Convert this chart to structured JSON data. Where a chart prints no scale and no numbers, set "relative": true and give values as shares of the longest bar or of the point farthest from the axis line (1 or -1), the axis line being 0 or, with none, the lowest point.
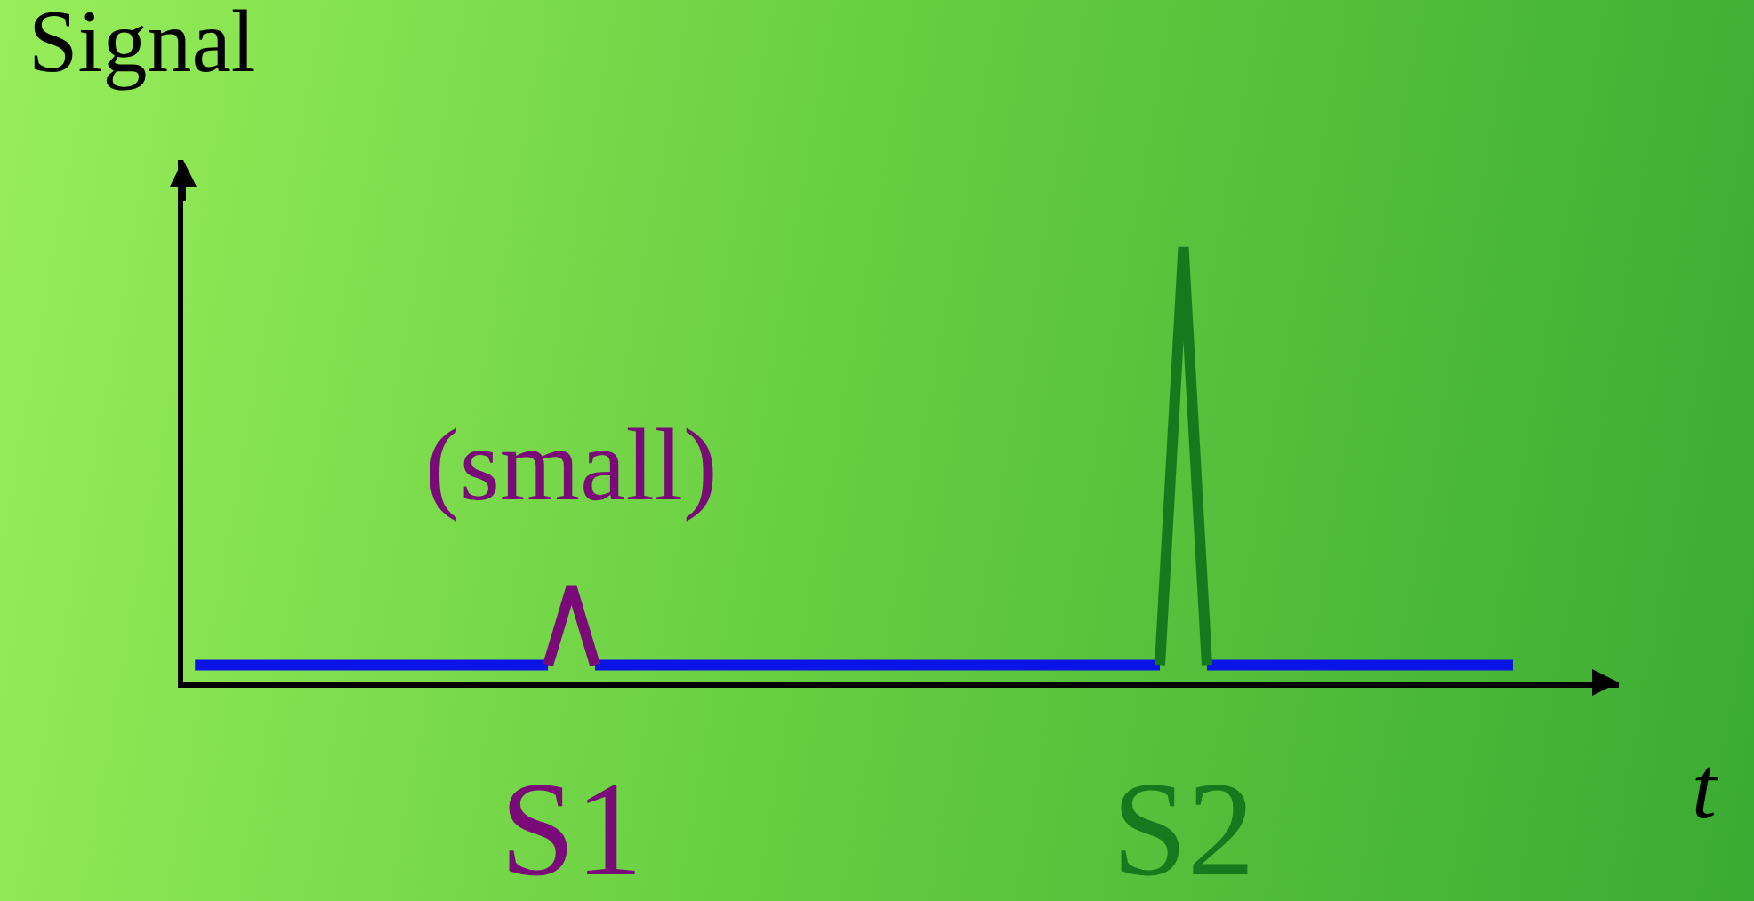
{
  "chart_data": {
    "type": "line",
    "relative": true,
    "ylabel": "Signal",
    "xlabel": "t",
    "categories": [
      null,
      null,
      null,
      null,
      null,
      null,
      null,
      null,
      null,
      null,
      null,
      null,
      null,
      null,
      null,
      null,
      "S1",
      null,
      null,
      null,
      null,
      null,
      null,
      null,
      null,
      null,
      null,
      null,
      null,
      null,
      null,
      null,
      null,
      null,
      null,
      null,
      null,
      null,
      null,
      null,
      null,
      null,
      "S2",
      null,
      null,
      null,
      null,
      null,
      null,
      null,
      null,
      null,
      null,
      null,
      null,
      null,
      null,
      null,
      null,
      null,
      null
    ],
    "series": [
      {
        "color": "#0a14e6",
        "values": [
          0.04,
          0.04,
          0.04,
          0.04,
          0.04,
          0.04,
          0.04,
          0.04,
          0.04,
          0.04,
          0.04,
          0.04,
          0.04,
          0.04,
          0.04,
          0.04,
          null,
          0.04,
          0.04,
          0.04,
          0.04,
          0.04,
          0.04,
          0.04,
          0.04,
          0.04,
          0.04,
          0.04,
          0.04,
          0.04,
          0.04,
          0.04,
          0.04,
          0.04,
          0.04,
          0.04,
          0.04,
          0.04,
          0.04,
          0.04,
          0.04,
          0.04,
          null,
          0.04,
          0.04,
          0.04,
          0.04,
          0.04,
          0.04,
          0.04,
          0.04,
          0.04,
          0.04,
          0.04,
          0.04,
          0.04,
          0.04,
          null,
          null,
          null,
          null
        ]
      },
      {
        "color": "#7a0a78",
        "values": [
          null,
          null,
          null,
          null,
          null,
          null,
          null,
          null,
          null,
          null,
          null,
          null,
          null,
          null,
          null,
          0.04,
          0.22,
          0.04,
          null,
          null,
          null,
          null,
          null,
          null,
          null,
          null,
          null,
          null,
          null,
          null,
          null,
          null,
          null,
          null,
          null,
          null,
          null,
          null,
          null,
          null,
          null,
          null,
          null,
          null,
          null,
          null,
          null,
          null,
          null,
          null,
          null,
          null,
          null,
          null,
          null,
          null,
          null,
          null,
          null,
          null,
          null
        ]
      },
      {
        "color": "#157a1e",
        "values": [
          null,
          null,
          null,
          null,
          null,
          null,
          null,
          null,
          null,
          null,
          null,
          null,
          null,
          null,
          null,
          null,
          null,
          null,
          null,
          null,
          null,
          null,
          null,
          null,
          null,
          null,
          null,
          null,
          null,
          null,
          null,
          null,
          null,
          null,
          null,
          null,
          null,
          null,
          null,
          null,
          null,
          0.04,
          1,
          0.04,
          null,
          null,
          null,
          null,
          null,
          null,
          null,
          null,
          null,
          null,
          null,
          null,
          null,
          null,
          null,
          null,
          null
        ]
      }
    ],
    "annotations": [
      "(small)"
    ],
    "marker": "none",
    "grid": false
  }
}
